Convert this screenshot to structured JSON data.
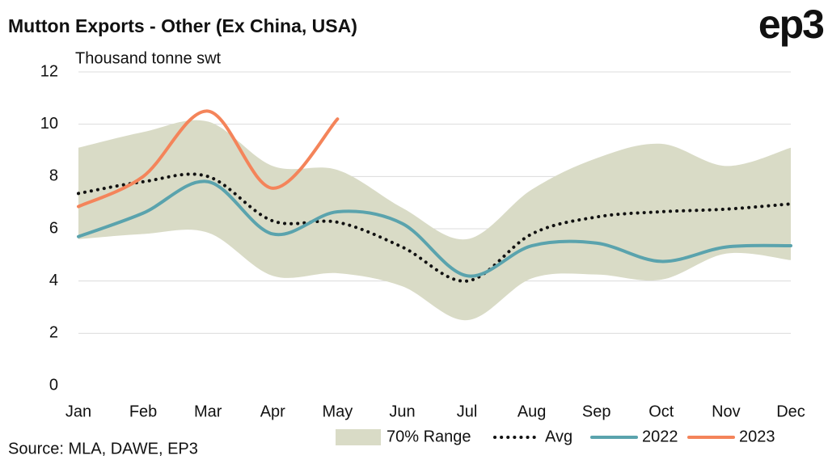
{
  "chart_data": {
    "type": "line",
    "title": "Mutton Exports - Other (Ex China, USA)",
    "logo": "ep3",
    "y_axis_label": "Thousand tonne swt",
    "source": "Source: MLA, DAWE, EP3",
    "categories": [
      "Jan",
      "Feb",
      "Mar",
      "Apr",
      "May",
      "Jun",
      "Jul",
      "Aug",
      "Sep",
      "Oct",
      "Nov",
      "Dec"
    ],
    "ylim": [
      0,
      12
    ],
    "yticks": [
      0,
      2,
      4,
      6,
      8,
      10,
      12
    ],
    "grid": true,
    "range": {
      "name": "70% Range",
      "color": "#d9dbc6",
      "high": [
        9.1,
        9.7,
        10.1,
        8.4,
        8.25,
        6.8,
        5.6,
        7.5,
        8.7,
        9.25,
        8.4,
        9.1
      ],
      "low": [
        5.6,
        5.8,
        5.85,
        4.2,
        4.3,
        3.8,
        2.5,
        4.1,
        4.25,
        4.05,
        5.05,
        4.8
      ]
    },
    "series": [
      {
        "name": "Avg",
        "color": "#111111",
        "style": "dotted",
        "values": [
          7.35,
          7.8,
          8.0,
          6.3,
          6.25,
          5.3,
          4.0,
          5.8,
          6.45,
          6.65,
          6.75,
          6.95
        ]
      },
      {
        "name": "2022",
        "color": "#5aa3ad",
        "style": "solid",
        "values": [
          5.7,
          6.6,
          7.8,
          5.8,
          6.65,
          6.2,
          4.2,
          5.35,
          5.45,
          4.75,
          5.3,
          5.35
        ]
      },
      {
        "name": "2023",
        "color": "#f4845a",
        "style": "solid",
        "values": [
          6.85,
          8.0,
          10.5,
          7.55,
          10.2,
          null,
          null,
          null,
          null,
          null,
          null,
          null
        ]
      }
    ]
  }
}
